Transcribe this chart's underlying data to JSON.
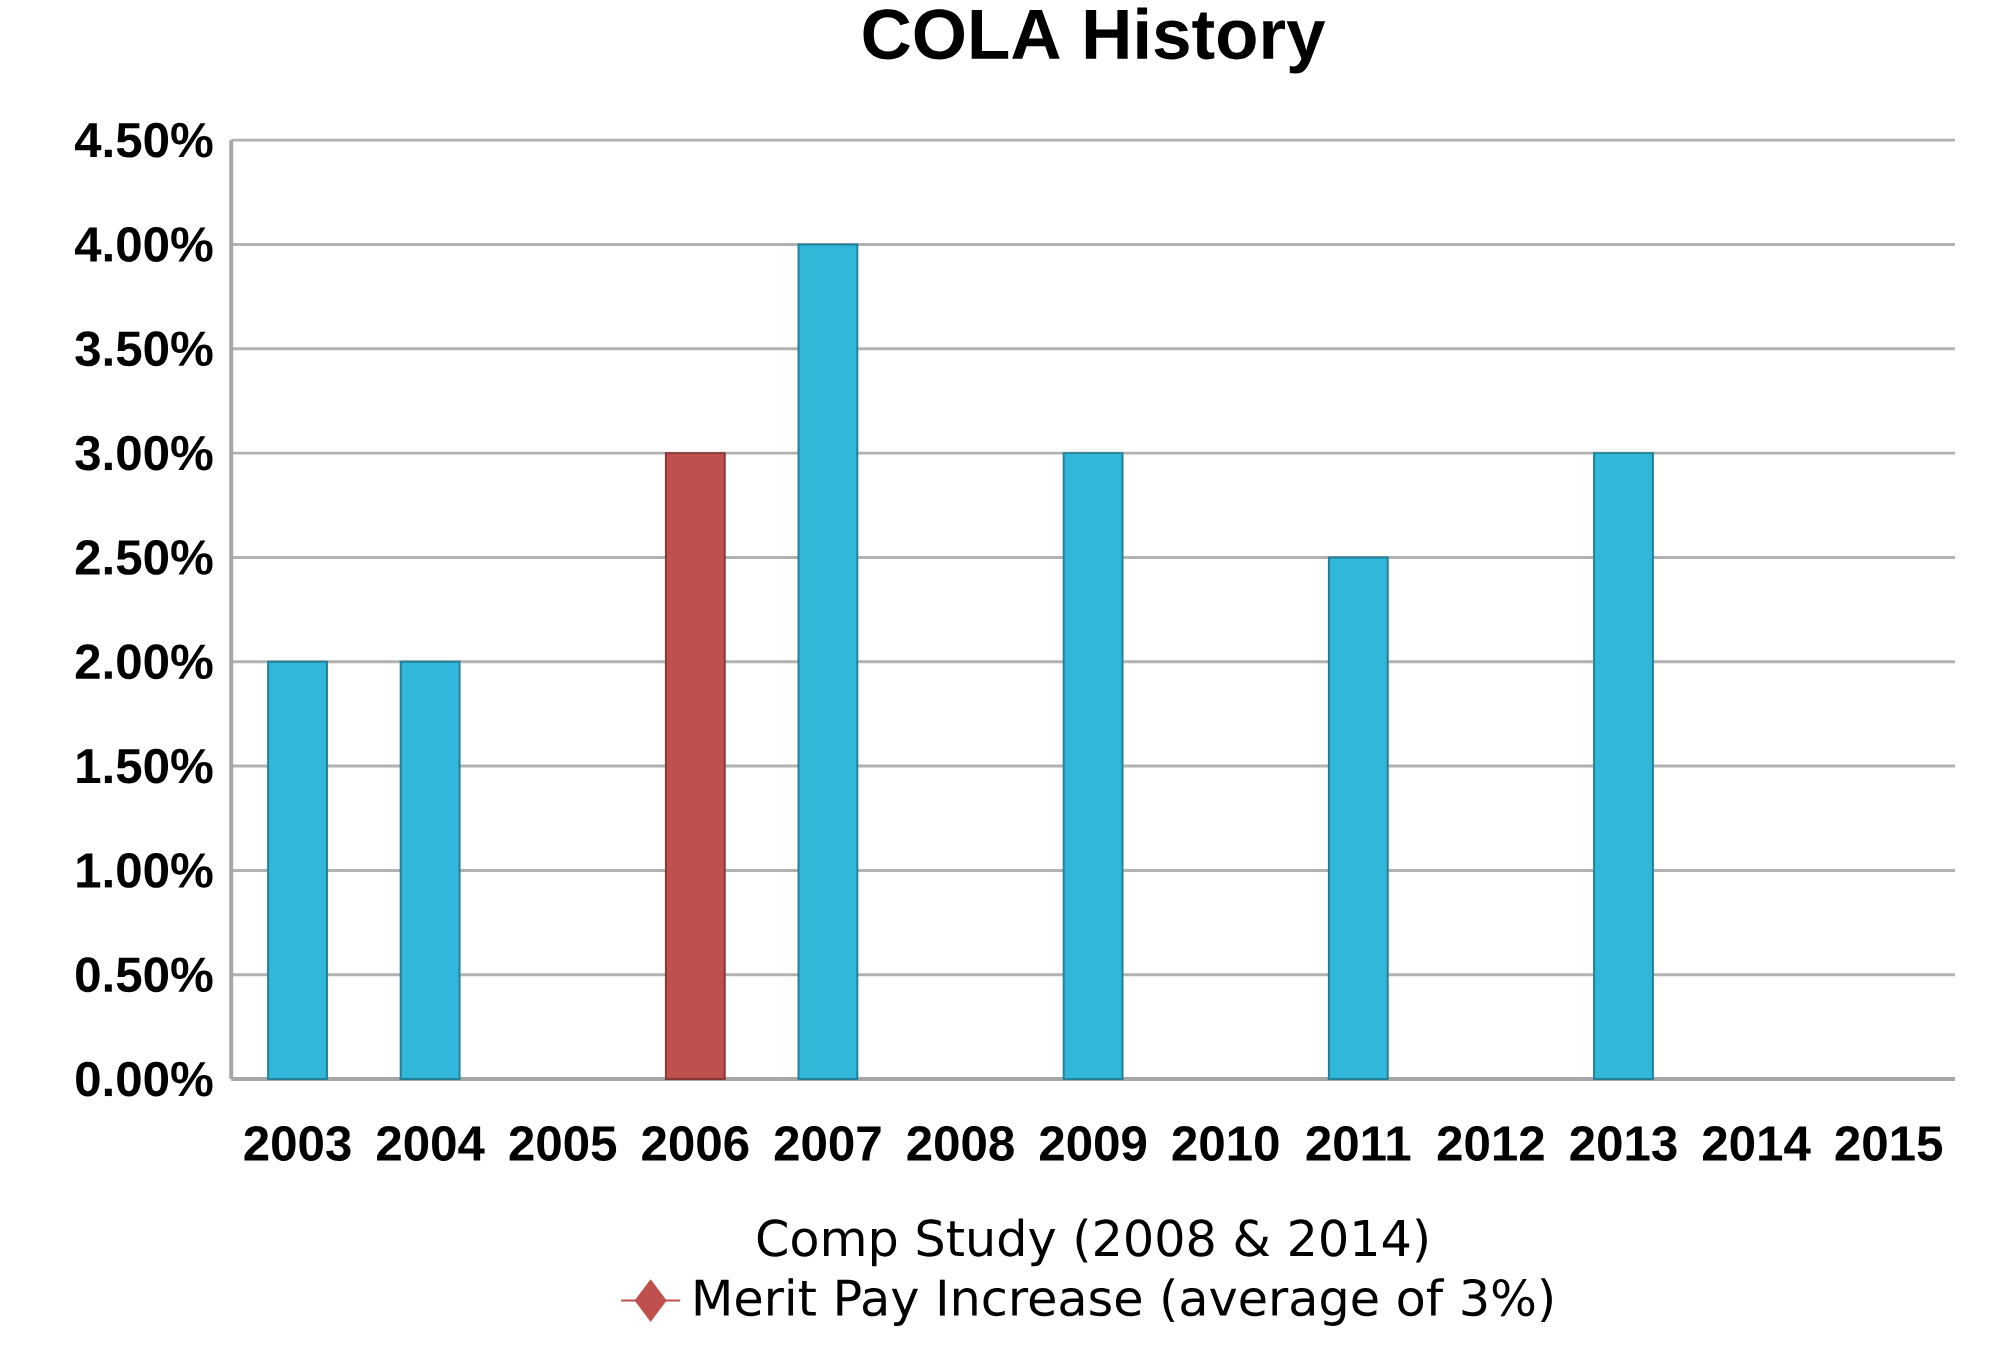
{
  "chart_data": {
    "type": "bar",
    "title": "COLA History",
    "categories": [
      "2003",
      "2004",
      "2005",
      "2006",
      "2007",
      "2008",
      "2009",
      "2010",
      "2011",
      "2012",
      "2013",
      "2014",
      "2015"
    ],
    "series": [
      {
        "color": "#31b7d9",
        "values": [
          2,
          2,
          null,
          null,
          4,
          null,
          3,
          null,
          2.5,
          null,
          3,
          null,
          null
        ]
      },
      {
        "name": "Merit Pay Increase (average of 3%)",
        "color": "#c0504d",
        "values": [
          null,
          null,
          null,
          3,
          null,
          null,
          null,
          null,
          null,
          null,
          null,
          null,
          null
        ]
      }
    ],
    "ylim": [
      0,
      4.5
    ],
    "yticks": [
      {
        "value": 0,
        "label": "0.00%"
      },
      {
        "value": 0.5,
        "label": "0.50%"
      },
      {
        "value": 1,
        "label": "1.00%"
      },
      {
        "value": 1.5,
        "label": "1.50%"
      },
      {
        "value": 2,
        "label": "2.00%"
      },
      {
        "value": 2.5,
        "label": "2.50%"
      },
      {
        "value": 3,
        "label": "3.00%"
      },
      {
        "value": 3.5,
        "label": "3.50%"
      },
      {
        "value": 4,
        "label": "4.00%"
      },
      {
        "value": 4.5,
        "label": "4.50%"
      }
    ],
    "grid": "y",
    "legend": "bottom",
    "marker": "diamond",
    "annotations": [
      "Comp Study (2008 & 2014)"
    ]
  }
}
